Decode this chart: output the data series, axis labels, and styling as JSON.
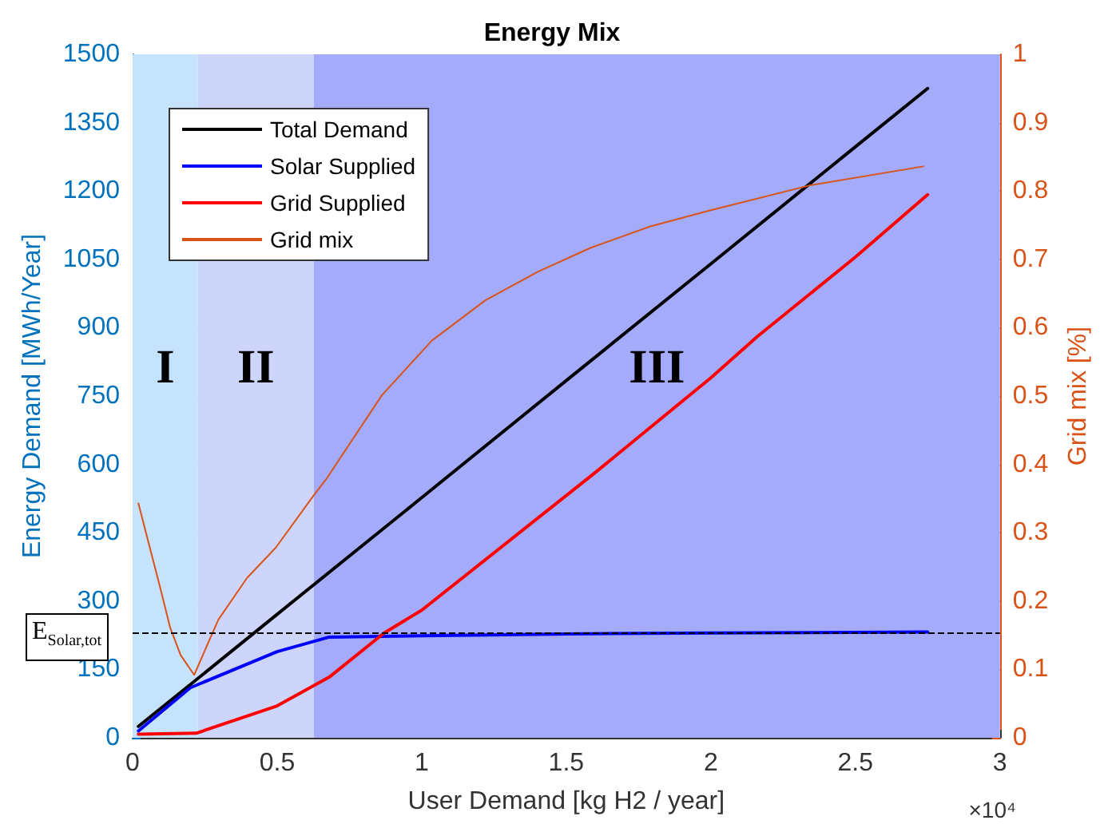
{
  "chart_data": {
    "type": "line",
    "title": "Energy Mix",
    "xlabel": "User Demand [kg H2 / year]",
    "ylabel": "Energy Demand [MWh/Year]",
    "y2label": "Grid mix [%]",
    "xlim": [
      0,
      3
    ],
    "xticks": [
      0,
      0.5,
      1,
      1.5,
      2,
      2.5,
      3
    ],
    "ylim": [
      0,
      1500
    ],
    "yticks": [
      0,
      150,
      300,
      450,
      600,
      750,
      900,
      1050,
      1200,
      1350,
      1500
    ],
    "y2lim": [
      0,
      1
    ],
    "y2ticks": [
      0,
      0.1,
      0.2,
      0.3,
      0.4,
      0.5,
      0.6,
      0.7,
      0.8,
      0.9,
      1
    ],
    "grid": true,
    "legend": "top left",
    "marker": "none",
    "line_style": "solid",
    "series": [
      {
        "name": "Total Demand",
        "color": "#000000",
        "x": [
          0.02,
          0.2,
          0.5,
          1,
          1.5,
          2,
          2.5,
          2.75
        ],
        "values": [
          25,
          117,
          271,
          527,
          784,
          1040,
          1297,
          1425
        ]
      },
      {
        "name": "Solar Supplied",
        "color": "#0000ff",
        "x": [
          0.02,
          0.2,
          0.5,
          0.68,
          1,
          1.5,
          2,
          2.75
        ],
        "values": [
          15,
          110,
          189,
          221,
          224,
          228,
          230,
          232
        ]
      },
      {
        "name": "Grid Supplied",
        "color": "#ff0000",
        "x": [
          0.02,
          0.22,
          0.5,
          0.68,
          0.87,
          1,
          1.6,
          2,
          2.16,
          2.5,
          2.75
        ],
        "values": [
          8,
          10,
          70,
          133,
          230,
          280,
          582,
          790,
          880,
          1055,
          1192
        ]
      },
      {
        "name": "Grid mix",
        "color": "#d95319",
        "axis": "y2",
        "x": [
          0.02,
          0.094,
          0.13,
          0.166,
          0.213,
          0.275,
          0.297,
          0.396,
          0.495,
          0.627,
          0.669,
          0.862,
          1.035,
          1.22,
          1.403,
          1.585,
          1.789,
          1.992,
          2.34,
          2.735
        ],
        "values": [
          0.343,
          0.222,
          0.161,
          0.121,
          0.092,
          0.152,
          0.173,
          0.234,
          0.278,
          0.355,
          0.378,
          0.501,
          0.581,
          0.64,
          0.682,
          0.717,
          0.748,
          0.771,
          0.808,
          0.836
        ]
      }
    ],
    "bands": [
      {
        "axis": "x",
        "from": 0,
        "to": 0.226,
        "label": "I",
        "color": "#c5e3fc"
      },
      {
        "axis": "x",
        "from": 0.226,
        "to": 0.627,
        "label": "II",
        "color": "#cdd5fb"
      },
      {
        "axis": "x",
        "from": 0.627,
        "to": 3,
        "label": "III",
        "color": "#a5abfb"
      }
    ],
    "ref_lines": [
      {
        "axis": "y",
        "value": 231,
        "label": "E$_{Solar,tot}$",
        "color": "#000000",
        "line_style": "dashed"
      }
    ],
    "annotations": [
      "×10⁴"
    ]
  }
}
